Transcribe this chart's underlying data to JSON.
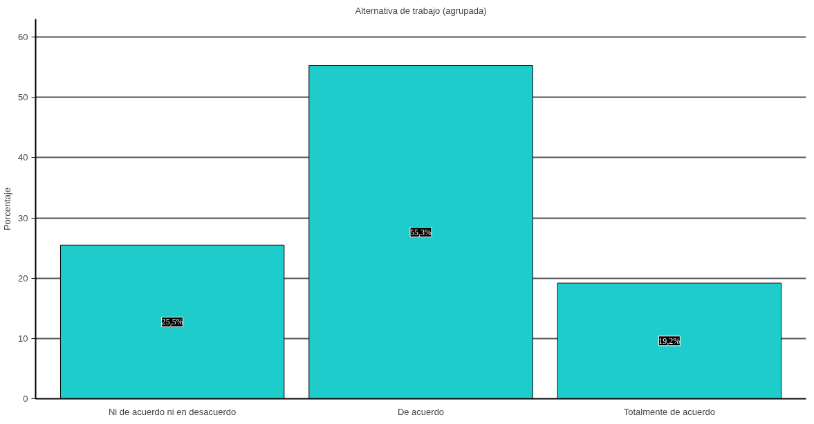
{
  "chart_data": {
    "type": "bar",
    "title": "Alternativa de trabajo (agrupada)",
    "ylabel": "Porcentaje",
    "categories": [
      "Ni de acuerdo ni en desacuerdo",
      "De acuerdo",
      "Totalmente de acuerdo"
    ],
    "values": [
      25.5,
      55.3,
      19.2
    ],
    "value_labels": [
      "25,5%",
      "55,3%",
      "19,2%"
    ],
    "color": "#1ecccc",
    "ylim": [
      0,
      63
    ],
    "yticks": [
      0,
      10,
      20,
      30,
      40,
      50,
      60
    ],
    "grid": "y"
  }
}
